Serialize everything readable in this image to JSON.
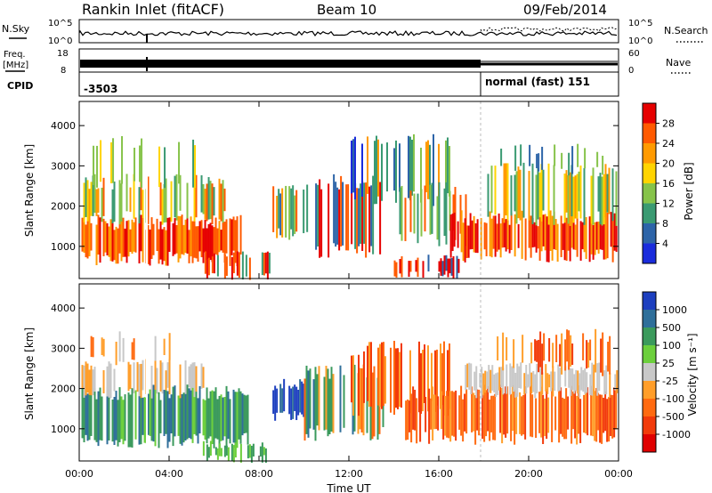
{
  "header": {
    "site": "Rankin Inlet (fitACF)",
    "beam": "Beam 10",
    "date": "09/Feb/2014"
  },
  "status_panels": {
    "nsky_label": "N.Sky",
    "nsearch_label": "N.Search",
    "noise_ticks": [
      "10^5",
      "10^0"
    ],
    "freq_label_line1": "Freq.",
    "freq_label_line2": "[MHz]",
    "freq_ticks": [
      "18",
      "8"
    ],
    "nave_label": "Nave",
    "nave_ticks": [
      "60",
      "0"
    ],
    "cpid_label": "CPID",
    "cpid_value_1": "-3503",
    "cpid_value_2": "normal (fast) 151"
  },
  "chart_data": [
    {
      "type": "heatmap",
      "name": "power",
      "ylabel": "Slant Range [km]",
      "yticks": [
        1000,
        2000,
        3000,
        4000
      ],
      "ylim": [
        200,
        4600
      ],
      "xlim": [
        0,
        24
      ],
      "colorbar_label": "Power [dB]",
      "colorbar_ticks": [
        "28",
        "24",
        "20",
        "16",
        "12",
        "8",
        "4"
      ],
      "colorbar_colors": [
        "#e60000",
        "#ff5a00",
        "#ff9a00",
        "#ffd400",
        "#86c34a",
        "#3a9a72",
        "#2d64a8",
        "#1a2cdc"
      ]
    },
    {
      "type": "heatmap",
      "name": "velocity",
      "ylabel": "Slant Range [km]",
      "yticks": [
        1000,
        2000,
        3000,
        4000
      ],
      "ylim": [
        200,
        4600
      ],
      "xlim": [
        0,
        24
      ],
      "xticks": [
        "00:00",
        "04:00",
        "08:00",
        "12:00",
        "16:00",
        "20:00",
        "00:00"
      ],
      "xlabel": "Time UT",
      "colorbar_label": "Velocity [m s⁻¹]",
      "colorbar_ticks": [
        "1000",
        "500",
        "100",
        "25",
        "-25",
        "-100",
        "-500",
        "-1000"
      ],
      "colorbar_colors": [
        "#1d3fbf",
        "#2f6f9a",
        "#3b9a5c",
        "#6ccf3c",
        "#c8c8c8",
        "#ff9e2a",
        "#ff6a10",
        "#f23a0a",
        "#e00000"
      ]
    }
  ]
}
